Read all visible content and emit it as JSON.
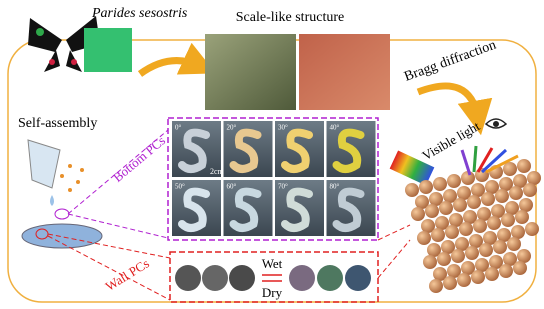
{
  "top": {
    "species": "Parides sesostris",
    "structure": "Scale-like structure",
    "diffraction": "Bragg diffraction"
  },
  "left": {
    "process": "Self-assembly",
    "bottom": "Bottom PCs",
    "wall": "Wall PCs"
  },
  "panel": {
    "angles": [
      "0°",
      "20°",
      "30°",
      "40°",
      "50°",
      "60°",
      "70°",
      "80°"
    ],
    "scale": "2cm"
  },
  "wall": {
    "wet": "Wet",
    "dry": "Dry"
  },
  "right": {
    "light": "Visible light"
  }
}
